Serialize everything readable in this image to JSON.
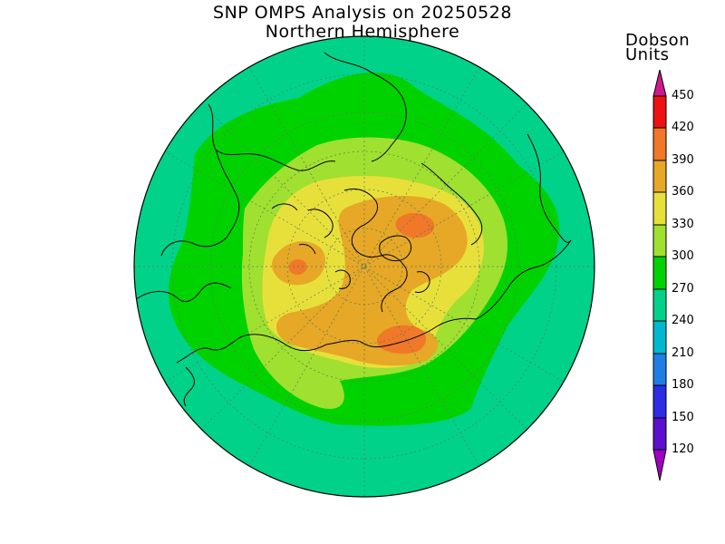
{
  "title": {
    "line1": "SNP OMPS Analysis on 20250528",
    "line2": "Northern Hemisphere"
  },
  "colorbar": {
    "unit_line1": "Dobson",
    "unit_line2": "Units",
    "levels": [
      {
        "value": "450",
        "color": "#e6007a"
      },
      {
        "value": "420",
        "color": "#ee1111"
      },
      {
        "value": "390",
        "color": "#f07828"
      },
      {
        "value": "360",
        "color": "#e6a826"
      },
      {
        "value": "330",
        "color": "#e8e03a"
      },
      {
        "value": "300",
        "color": "#a0e030"
      },
      {
        "value": "270",
        "color": "#00d200"
      },
      {
        "value": "240",
        "color": "#00d28a"
      },
      {
        "value": "210",
        "color": "#00b8d0"
      },
      {
        "value": "180",
        "color": "#1e7ee6"
      },
      {
        "value": "150",
        "color": "#2d2de6"
      },
      {
        "value": "120",
        "color": "#5a10cc"
      }
    ],
    "bottom_color": "#a000c0"
  }
}
